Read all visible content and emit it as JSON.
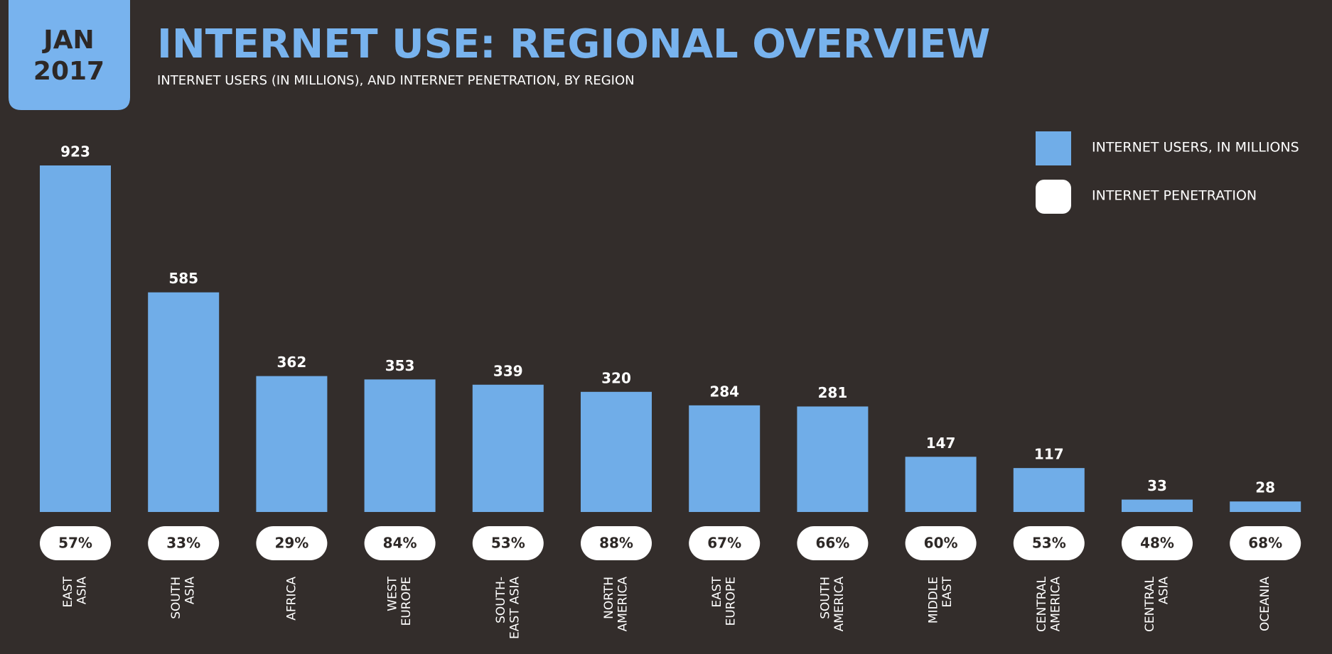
{
  "chart_data": {
    "type": "bar",
    "badge": [
      "JAN",
      "2017"
    ],
    "title": "INTERNET USE: REGIONAL OVERVIEW",
    "subtitle": "INTERNET USERS (IN MILLIONS), AND INTERNET PENETRATION, BY REGION",
    "categories": [
      "EAST\nASIA",
      "SOUTH\nASIA",
      "AFRICA",
      "WEST\nEUROPE",
      "SOUTH-\nEAST ASIA",
      "NORTH\nAMERICA",
      "EAST\nEUROPE",
      "SOUTH\nAMERICA",
      "MIDDLE\nEAST",
      "CENTRAL\nAMERICA",
      "CENTRAL\nASIA",
      "OCEANIA"
    ],
    "series": [
      {
        "name": "INTERNET USERS, IN MILLIONS",
        "color": "#70ade8",
        "values": [
          923,
          585,
          362,
          353,
          339,
          320,
          284,
          281,
          147,
          117,
          33,
          28
        ]
      },
      {
        "name": "INTERNET PENETRATION",
        "color": "#ffffff",
        "values": [
          57,
          33,
          29,
          84,
          53,
          88,
          67,
          66,
          60,
          53,
          48,
          68
        ],
        "value_labels": [
          "57%",
          "33%",
          "29%",
          "84%",
          "53%",
          "88%",
          "67%",
          "66%",
          "60%",
          "53%",
          "48%",
          "68%"
        ]
      }
    ],
    "legend": "top-right"
  }
}
